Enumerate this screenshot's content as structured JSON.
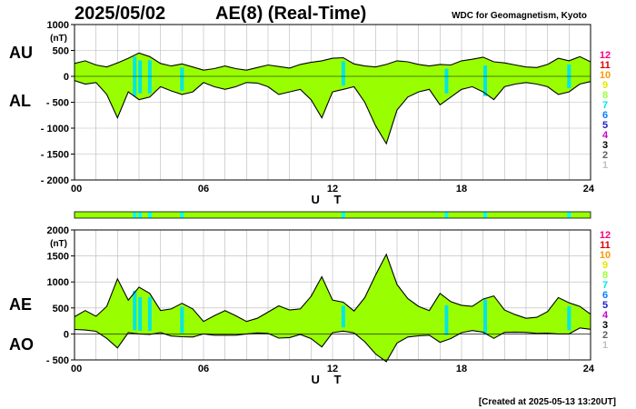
{
  "header": {
    "date": "2025/05/02",
    "title": "AE(8)  (Real-Time)",
    "source": "WDC for Geomagnetism, Kyoto",
    "created": "[Created at 2025-05-13 13:20UT]"
  },
  "station_scale": {
    "labels": [
      "12",
      "11",
      "10",
      "9",
      "8",
      "7",
      "6",
      "5",
      "4",
      "3",
      "2",
      "1"
    ],
    "colors": [
      "#ff0080",
      "#e00000",
      "#ff9900",
      "#e6e600",
      "#99ff33",
      "#00e6e6",
      "#0080ff",
      "#2020c0",
      "#cc00cc",
      "#000000",
      "#606060",
      "#c0c0c0"
    ],
    "selected_station_color": "#99ff00",
    "highlight_station_color": "#00ffff"
  },
  "chart_data": [
    {
      "type": "area",
      "panel": "AU/AL",
      "series_labels": [
        "AU",
        "AL"
      ],
      "ylabel": "(nT)",
      "xlabel": "U T",
      "xlim": [
        0,
        24
      ],
      "ylim": [
        -2000,
        1000
      ],
      "yticks": [
        1000,
        500,
        0,
        -500,
        -1000,
        -1500,
        -2000
      ],
      "ytick_labels": [
        "1000",
        "500",
        "0",
        "- 500",
        "- 1000",
        "- 1500",
        "- 2000"
      ],
      "xticks": [
        0,
        6,
        12,
        18,
        24
      ],
      "xtick_labels": [
        "00",
        "06",
        "12",
        "18",
        "24"
      ],
      "grid": true,
      "fill_color": "#99ff00",
      "highlight_color": "#00e6e6",
      "highlight_times": [
        2.8,
        3.05,
        3.5,
        5.0,
        12.5,
        17.3,
        19.1,
        23.0
      ],
      "series": [
        {
          "name": "AU",
          "x": [
            0,
            0.5,
            1,
            1.5,
            2,
            2.5,
            3,
            3.5,
            4,
            4.5,
            5,
            5.5,
            6,
            6.5,
            7,
            7.5,
            8,
            8.5,
            9,
            9.5,
            10,
            10.5,
            11,
            11.5,
            12,
            12.5,
            13,
            13.5,
            14,
            14.5,
            15,
            15.5,
            16,
            16.5,
            17,
            17.5,
            18,
            18.5,
            19,
            19.5,
            20,
            20.5,
            21,
            21.5,
            22,
            22.5,
            23,
            23.5,
            24
          ],
          "values": [
            250,
            300,
            220,
            180,
            260,
            350,
            450,
            380,
            250,
            200,
            240,
            180,
            120,
            150,
            200,
            150,
            120,
            170,
            220,
            190,
            160,
            230,
            270,
            300,
            350,
            360,
            240,
            200,
            180,
            230,
            300,
            280,
            230,
            200,
            230,
            220,
            300,
            330,
            370,
            280,
            260,
            220,
            180,
            170,
            230,
            350,
            300,
            380,
            280
          ]
        },
        {
          "name": "AL",
          "x": [
            0,
            0.5,
            1,
            1.5,
            2,
            2.5,
            3,
            3.5,
            4,
            4.5,
            5,
            5.5,
            6,
            6.5,
            7,
            7.5,
            8,
            8.5,
            9,
            9.5,
            10,
            10.5,
            11,
            11.5,
            12,
            12.5,
            13,
            13.5,
            14,
            14.5,
            15,
            15.5,
            16,
            16.5,
            17,
            17.5,
            18,
            18.5,
            19,
            19.5,
            20,
            20.5,
            21,
            21.5,
            22,
            22.5,
            23,
            23.5,
            24
          ],
          "values": [
            -80,
            -150,
            -120,
            -350,
            -800,
            -300,
            -450,
            -400,
            -200,
            -280,
            -350,
            -300,
            -120,
            -200,
            -250,
            -200,
            -120,
            -130,
            -200,
            -350,
            -300,
            -250,
            -450,
            -800,
            -300,
            -250,
            -200,
            -500,
            -950,
            -1300,
            -650,
            -400,
            -300,
            -250,
            -550,
            -400,
            -250,
            -200,
            -300,
            -450,
            -200,
            -150,
            -120,
            -150,
            -200,
            -350,
            -300,
            -150,
            -100
          ]
        }
      ]
    },
    {
      "type": "area",
      "panel": "AE/AO",
      "series_labels": [
        "AE",
        "AO"
      ],
      "ylabel": "(nT)",
      "xlabel": "U T",
      "xlim": [
        0,
        24
      ],
      "ylim": [
        -500,
        2000
      ],
      "yticks": [
        2000,
        1500,
        1000,
        500,
        0,
        -500
      ],
      "ytick_labels": [
        "2000",
        "1500",
        "1000",
        "500",
        "0",
        "- 500"
      ],
      "xticks": [
        0,
        6,
        12,
        18,
        24
      ],
      "xtick_labels": [
        "00",
        "06",
        "12",
        "18",
        "24"
      ],
      "grid": true,
      "fill_color": "#99ff00",
      "highlight_color": "#00e6e6",
      "highlight_times": [
        2.8,
        3.05,
        3.5,
        5.0,
        12.5,
        17.3,
        19.1,
        23.0
      ],
      "series": [
        {
          "name": "AE",
          "x": [
            0,
            0.5,
            1,
            1.5,
            2,
            2.5,
            3,
            3.5,
            4,
            4.5,
            5,
            5.5,
            6,
            6.5,
            7,
            7.5,
            8,
            8.5,
            9,
            9.5,
            10,
            10.5,
            11,
            11.5,
            12,
            12.5,
            13,
            13.5,
            14,
            14.5,
            15,
            15.5,
            16,
            16.5,
            17,
            17.5,
            18,
            18.5,
            19,
            19.5,
            20,
            20.5,
            21,
            21.5,
            22,
            22.5,
            23,
            23.5,
            24
          ],
          "values": [
            330,
            450,
            340,
            530,
            1060,
            650,
            900,
            780,
            450,
            480,
            590,
            480,
            240,
            350,
            450,
            350,
            240,
            300,
            420,
            540,
            460,
            480,
            720,
            1100,
            650,
            610,
            440,
            700,
            1130,
            1530,
            950,
            680,
            530,
            450,
            780,
            620,
            550,
            530,
            670,
            730,
            460,
            370,
            300,
            320,
            430,
            700,
            600,
            530,
            380
          ]
        },
        {
          "name": "AO",
          "x": [
            0,
            0.5,
            1,
            1.5,
            2,
            2.5,
            3,
            3.5,
            4,
            4.5,
            5,
            5.5,
            6,
            6.5,
            7,
            7.5,
            8,
            8.5,
            9,
            9.5,
            10,
            10.5,
            11,
            11.5,
            12,
            12.5,
            13,
            13.5,
            14,
            14.5,
            15,
            15.5,
            16,
            16.5,
            17,
            17.5,
            18,
            18.5,
            19,
            19.5,
            20,
            20.5,
            21,
            21.5,
            22,
            22.5,
            23,
            23.5,
            24
          ],
          "values": [
            85,
            75,
            50,
            -85,
            -270,
            25,
            0,
            -10,
            25,
            -40,
            -55,
            -60,
            0,
            -25,
            -25,
            -25,
            0,
            20,
            10,
            -80,
            -70,
            -10,
            -90,
            -250,
            25,
            55,
            20,
            -150,
            -385,
            -535,
            -175,
            -60,
            -35,
            -25,
            -160,
            -90,
            25,
            65,
            35,
            -85,
            30,
            35,
            30,
            10,
            15,
            0,
            0,
            115,
            90
          ]
        }
      ]
    }
  ]
}
